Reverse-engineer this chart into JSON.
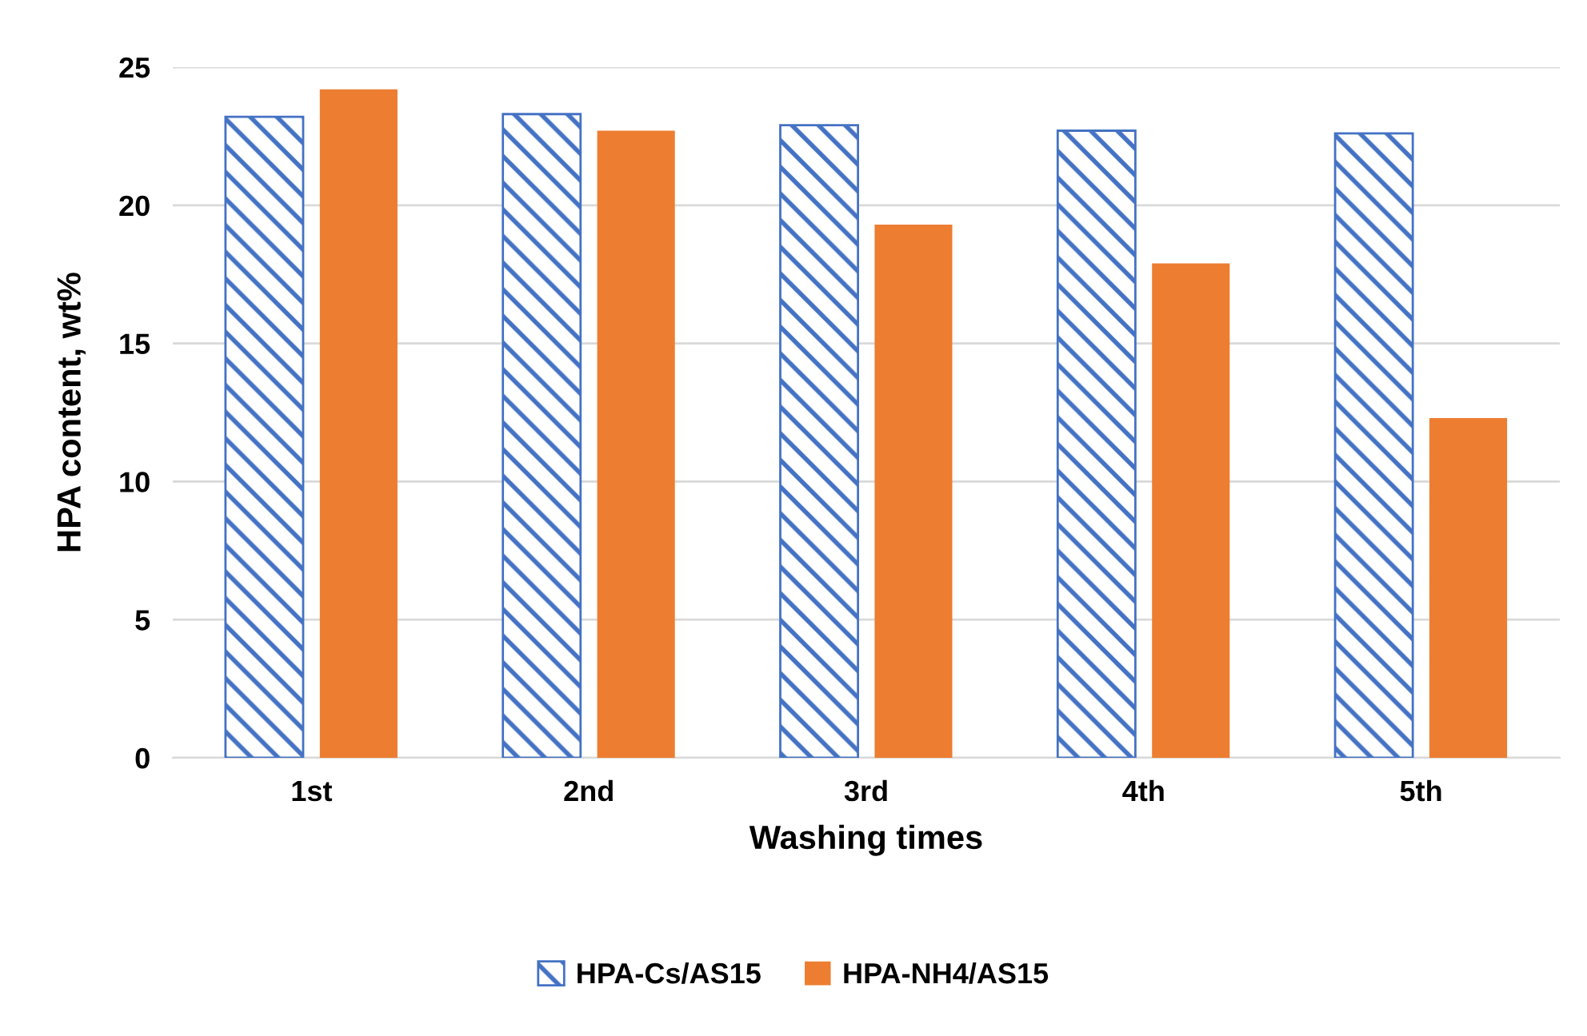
{
  "chart_data": {
    "type": "bar",
    "xlabel": "Washing times",
    "ylabel": "HPA content, wt%",
    "categories": [
      "1st",
      "2nd",
      "3rd",
      "4th",
      "5th"
    ],
    "series": [
      {
        "name": "HPA-Cs/AS15",
        "color": "#4472c4",
        "values": [
          23.2,
          23.3,
          22.9,
          22.7,
          22.6
        ]
      },
      {
        "name": "HPA-NH4/AS15",
        "color": "#ed7d31",
        "values": [
          24.2,
          22.7,
          19.3,
          17.9,
          12.3
        ]
      }
    ],
    "ylim": [
      0,
      25
    ],
    "yticks": [
      0,
      5,
      10,
      15,
      20,
      25
    ],
    "grid": "y",
    "legend": "bottom"
  }
}
